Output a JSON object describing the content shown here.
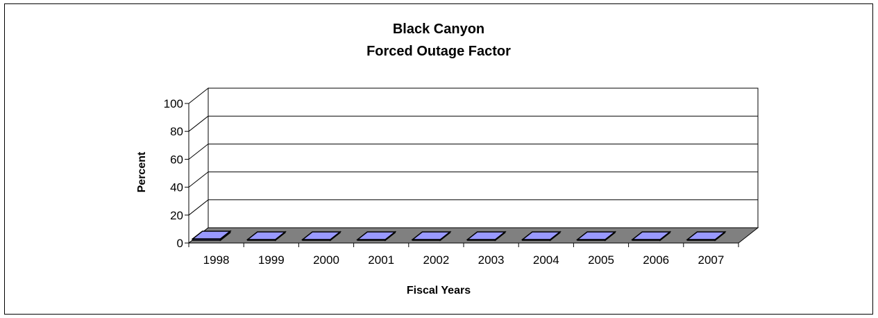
{
  "chart_data": {
    "type": "bar",
    "title": "Black Canyon",
    "subtitle": "Forced Outage Factor",
    "xlabel": "Fiscal Years",
    "ylabel": "Percent",
    "categories": [
      "1998",
      "1999",
      "2000",
      "2001",
      "2002",
      "2003",
      "2004",
      "2005",
      "2006",
      "2007"
    ],
    "series": [
      {
        "values": [
          1.0,
          0.3,
          0.3,
          0.3,
          0.3,
          0.3,
          0.3,
          0.3,
          0.3,
          0.3
        ]
      }
    ],
    "ylim": [
      0,
      100
    ],
    "yticks": [
      "0",
      "20",
      "40",
      "60",
      "80",
      "100"
    ],
    "grid": true,
    "legend": "none",
    "colors": {
      "bar": "#9999ff",
      "floor": "#808080",
      "wall": "#ffffff"
    }
  }
}
